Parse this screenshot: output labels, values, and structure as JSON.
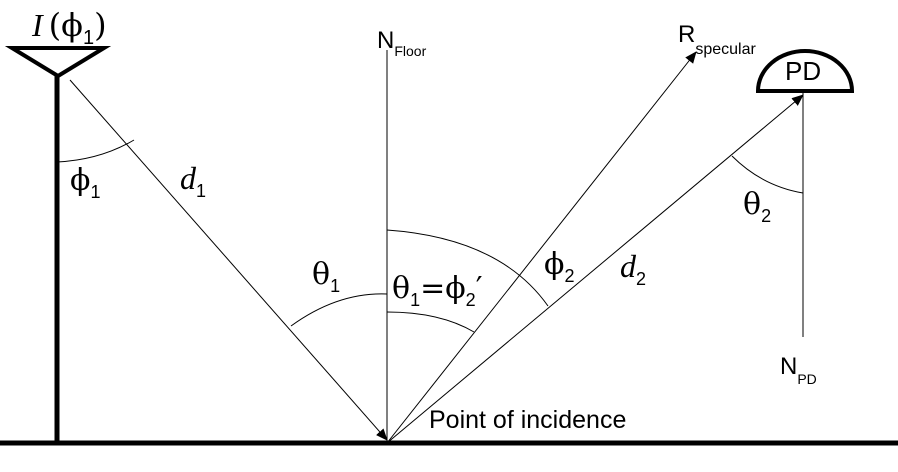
{
  "source": {
    "symbol": "I",
    "arg_open": "(",
    "phi": "ϕ",
    "sub": "1",
    "arg_close": ")"
  },
  "angles": {
    "phi1": {
      "symbol": "ϕ",
      "sub": "1"
    },
    "phi2": {
      "symbol": "ϕ",
      "sub": "2"
    },
    "theta1": {
      "symbol": "θ",
      "sub": "1"
    },
    "theta2": {
      "symbol": "θ",
      "sub": "2"
    },
    "equality": {
      "left": "θ",
      "left_sub": "1",
      "eq": "=",
      "right": "ϕ",
      "right_sub": "2",
      "prime": "′"
    }
  },
  "distances": {
    "d1": {
      "symbol": "d",
      "sub": "1"
    },
    "d2": {
      "symbol": "d",
      "sub": "2"
    }
  },
  "normals": {
    "floor": {
      "symbol": "N",
      "sub": "Floor"
    },
    "pd": {
      "symbol": "N",
      "sub": "PD"
    }
  },
  "specular": {
    "symbol": "R",
    "sub": "specular"
  },
  "detector": {
    "label": "PD"
  },
  "incidence": {
    "label": "Point of incidence"
  }
}
